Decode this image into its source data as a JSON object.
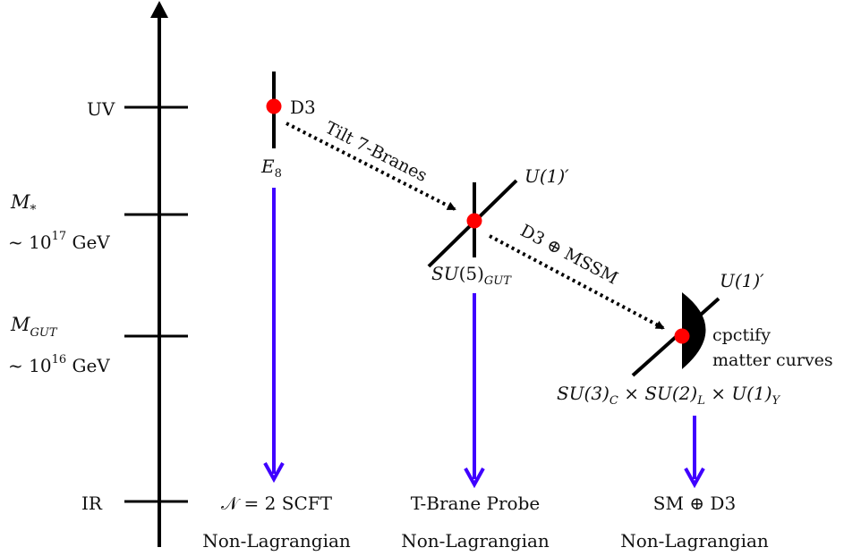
{
  "scale": {
    "uv": "UV",
    "ir": "IR",
    "mstar_sym": "M",
    "mstar_sub": "*",
    "mstar_value_prefix": "~ 10",
    "mstar_exp": "17",
    "mstar_unit": " GeV",
    "mgut_sym": "M",
    "mgut_sub": "GUT",
    "mgut_value_prefix": "~ 10",
    "mgut_exp": "16",
    "mgut_unit": " GeV"
  },
  "stages": {
    "e8": {
      "base": "E",
      "sub": "8",
      "brane": "D3"
    },
    "su5": {
      "base": "SU",
      "arg": "(5)",
      "sub": "GUT",
      "u1": "U(1)′"
    },
    "sm": {
      "u1": "U(1)′",
      "group": "SU(3)",
      "sub_c": "C",
      "times1": " × SU(2)",
      "sub_l": "L",
      "times2": " × U(1)",
      "sub_y": "Y",
      "note_line1": "cpctify",
      "note_line2": "matter curves"
    }
  },
  "flows": {
    "tilt": "Tilt 7-Branes",
    "d3mssm": "D3 ⊕ MSSM"
  },
  "endpoints": {
    "left_line1": "𝒩 = 2 SCFT",
    "left_line2": "Non-Lagrangian",
    "mid_line1": "T-Brane Probe",
    "mid_line2": "Non-Lagrangian",
    "right_line1": "SM ⊕ D3",
    "right_line2": "Non-Lagrangian"
  },
  "colors": {
    "ink": "#000000",
    "dot": "#ff0000",
    "flow_arrow": "#3f00ff"
  }
}
